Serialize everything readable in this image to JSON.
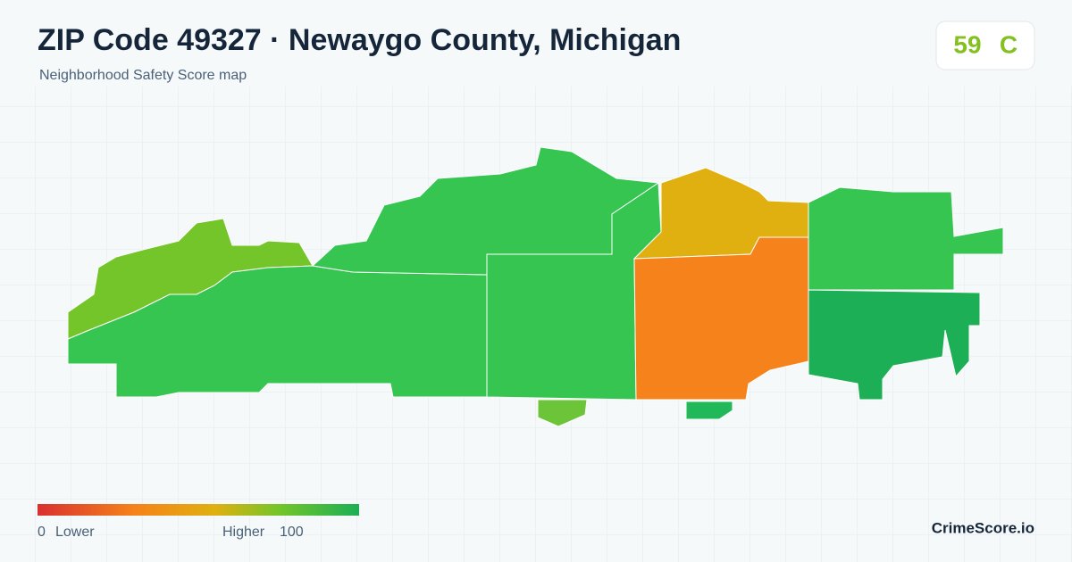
{
  "header": {
    "title": "ZIP Code 49327 · Newaygo County, Michigan",
    "subtitle": "Neighborhood Safety Score map"
  },
  "badge": {
    "score": 59,
    "grade": "C"
  },
  "legend": {
    "min": 0,
    "min_label": "Lower",
    "max_label": "Higher",
    "max": 100
  },
  "footer": {
    "brand": "CrimeScore.io"
  }
}
